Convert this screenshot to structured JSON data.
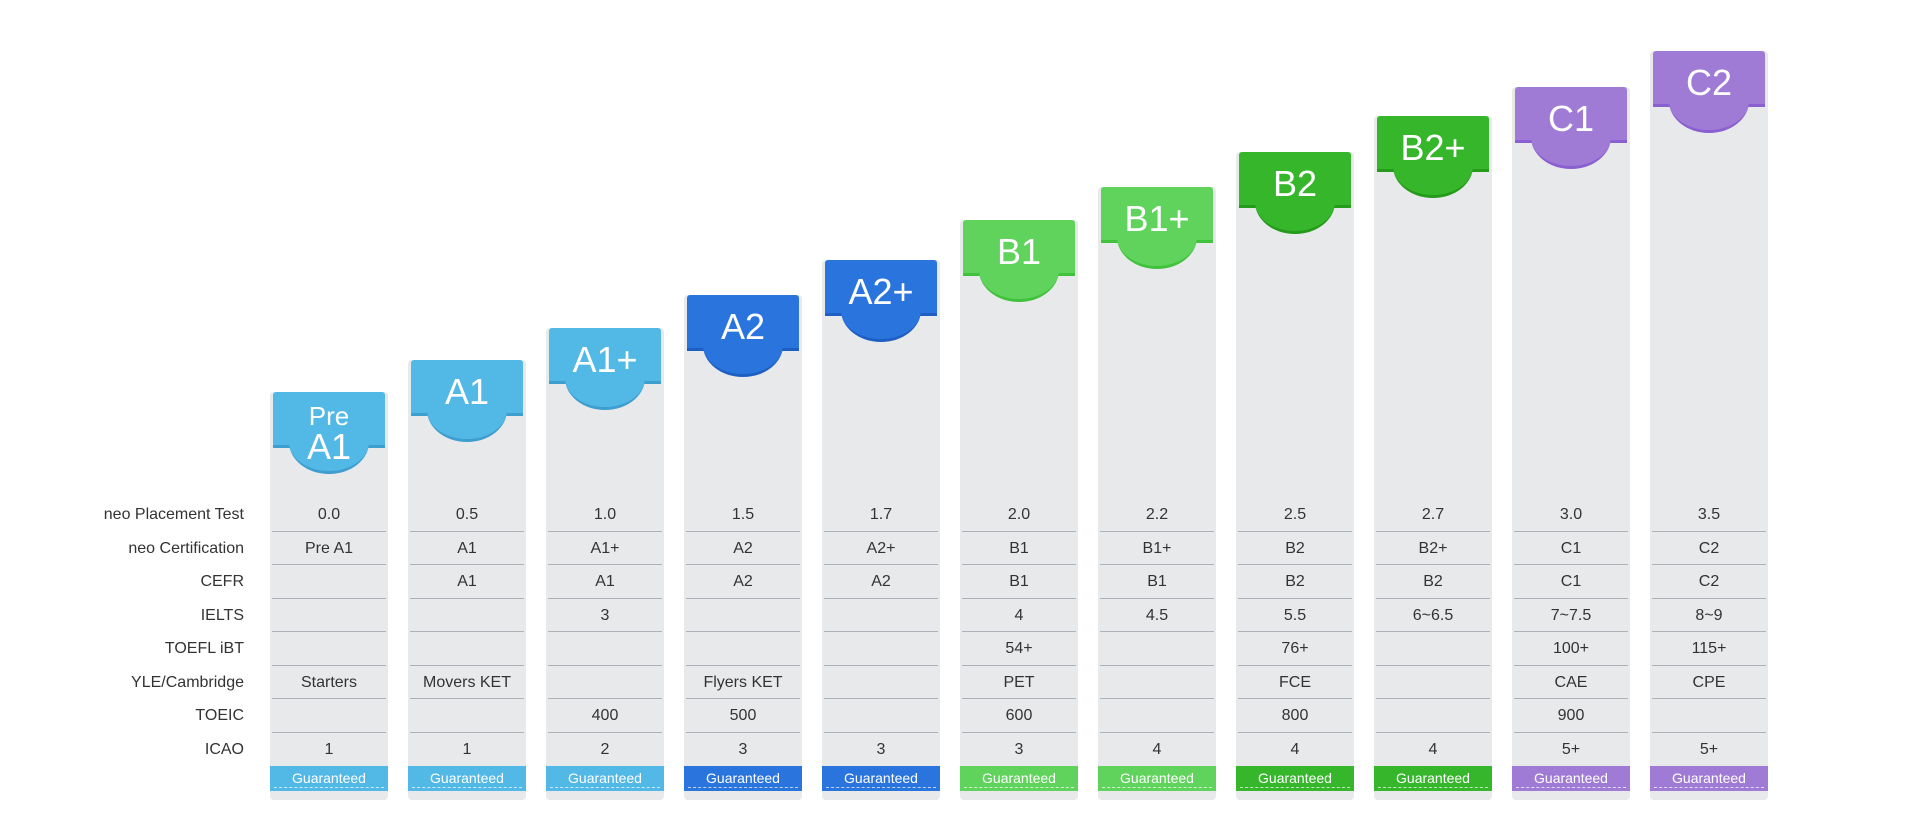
{
  "row_labels": [
    "neo Placement Test",
    "neo Certification",
    "CEFR",
    "IELTS",
    "TOEFL iBT",
    "YLE/Cambridge",
    "TOEIC",
    "ICAO"
  ],
  "guaranteed_label": "Guaranteed",
  "colors": {
    "light_blue": "#52b8e6",
    "light_blue_dark": "#3f9ed0",
    "blue": "#2a74dd",
    "blue_dark": "#1f5fc4",
    "light_green": "#5fd35c",
    "light_green_dark": "#41c23c",
    "green": "#36b62a",
    "green_dark": "#269a1c",
    "purple": "#a07bd6",
    "purple_dark": "#8a5fd0",
    "column_bg": "#e8e9eb"
  },
  "levels": [
    {
      "badge_lines": [
        "Pre",
        "A1"
      ],
      "color": "light_blue",
      "cells": [
        "0.0",
        "Pre A1",
        "",
        "",
        "",
        "Starters",
        "",
        "1"
      ]
    },
    {
      "badge_lines": [
        "A1"
      ],
      "color": "light_blue",
      "cells": [
        "0.5",
        "A1",
        "A1",
        "",
        "",
        "Movers KET",
        "",
        "1"
      ]
    },
    {
      "badge_lines": [
        "A1+"
      ],
      "color": "light_blue",
      "cells": [
        "1.0",
        "A1+",
        "A1",
        "3",
        "",
        "",
        "400",
        "2"
      ]
    },
    {
      "badge_lines": [
        "A2"
      ],
      "color": "blue",
      "cells": [
        "1.5",
        "A2",
        "A2",
        "",
        "",
        "Flyers KET",
        "500",
        "3"
      ]
    },
    {
      "badge_lines": [
        "A2+"
      ],
      "color": "blue",
      "cells": [
        "1.7",
        "A2+",
        "A2",
        "",
        "",
        "",
        "",
        "3"
      ]
    },
    {
      "badge_lines": [
        "B1"
      ],
      "color": "light_green",
      "cells": [
        "2.0",
        "B1",
        "B1",
        "4",
        "54+",
        "PET",
        "600",
        "3"
      ]
    },
    {
      "badge_lines": [
        "B1+"
      ],
      "color": "light_green",
      "cells": [
        "2.2",
        "B1+",
        "B1",
        "4.5",
        "",
        "",
        "",
        "4"
      ]
    },
    {
      "badge_lines": [
        "B2"
      ],
      "color": "green",
      "cells": [
        "2.5",
        "B2",
        "B2",
        "5.5",
        "76+",
        "FCE",
        "800",
        "4"
      ]
    },
    {
      "badge_lines": [
        "B2+"
      ],
      "color": "green",
      "cells": [
        "2.7",
        "B2+",
        "B2",
        "6~6.5",
        "",
        "",
        "",
        "4"
      ]
    },
    {
      "badge_lines": [
        "C1"
      ],
      "color": "purple",
      "cells": [
        "3.0",
        "C1",
        "C1",
        "7~7.5",
        "100+",
        "CAE",
        "900",
        "5+"
      ]
    },
    {
      "badge_lines": [
        "C2"
      ],
      "color": "purple",
      "cells": [
        "3.5",
        "C2",
        "C2",
        "8~9",
        "115+",
        "CPE",
        "",
        "5+"
      ]
    }
  ]
}
